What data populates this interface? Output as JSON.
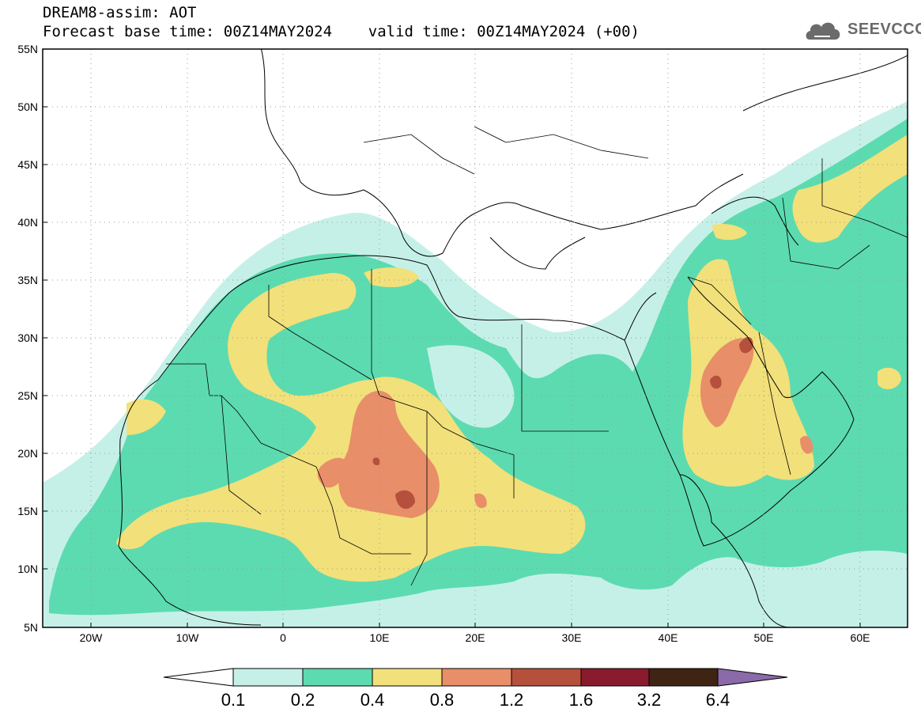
{
  "header": {
    "line1": "DREAM8-assim: AOT",
    "line2": "Forecast base time: 00Z14MAY2024    valid time: 00Z14MAY2024 (+00)"
  },
  "logo": {
    "text": "SEEVCCC",
    "icon": "cloud-icon"
  },
  "map": {
    "product": "Aerosol Optical Thickness",
    "lat_labels": [
      "55N",
      "50N",
      "45N",
      "40N",
      "35N",
      "30N",
      "25N",
      "20N",
      "15N",
      "10N",
      "5N"
    ],
    "lon_labels": [
      "20W",
      "10W",
      "0",
      "10E",
      "20E",
      "30E",
      "40E",
      "50E",
      "60E"
    ],
    "extent": {
      "lon": [
        -25,
        65
      ],
      "lat": [
        5,
        55
      ]
    },
    "grid": "dotted"
  },
  "colorbar": {
    "labels": [
      "0.1",
      "0.2",
      "0.4",
      "0.8",
      "1.2",
      "1.6",
      "3.2",
      "6.4"
    ],
    "colors": [
      "#c5f0e8",
      "#5cdbb0",
      "#f2e07a",
      "#e88e68",
      "#b4503c",
      "#8a1a2e",
      "#3f2414",
      "#8a6aa8"
    ]
  }
}
